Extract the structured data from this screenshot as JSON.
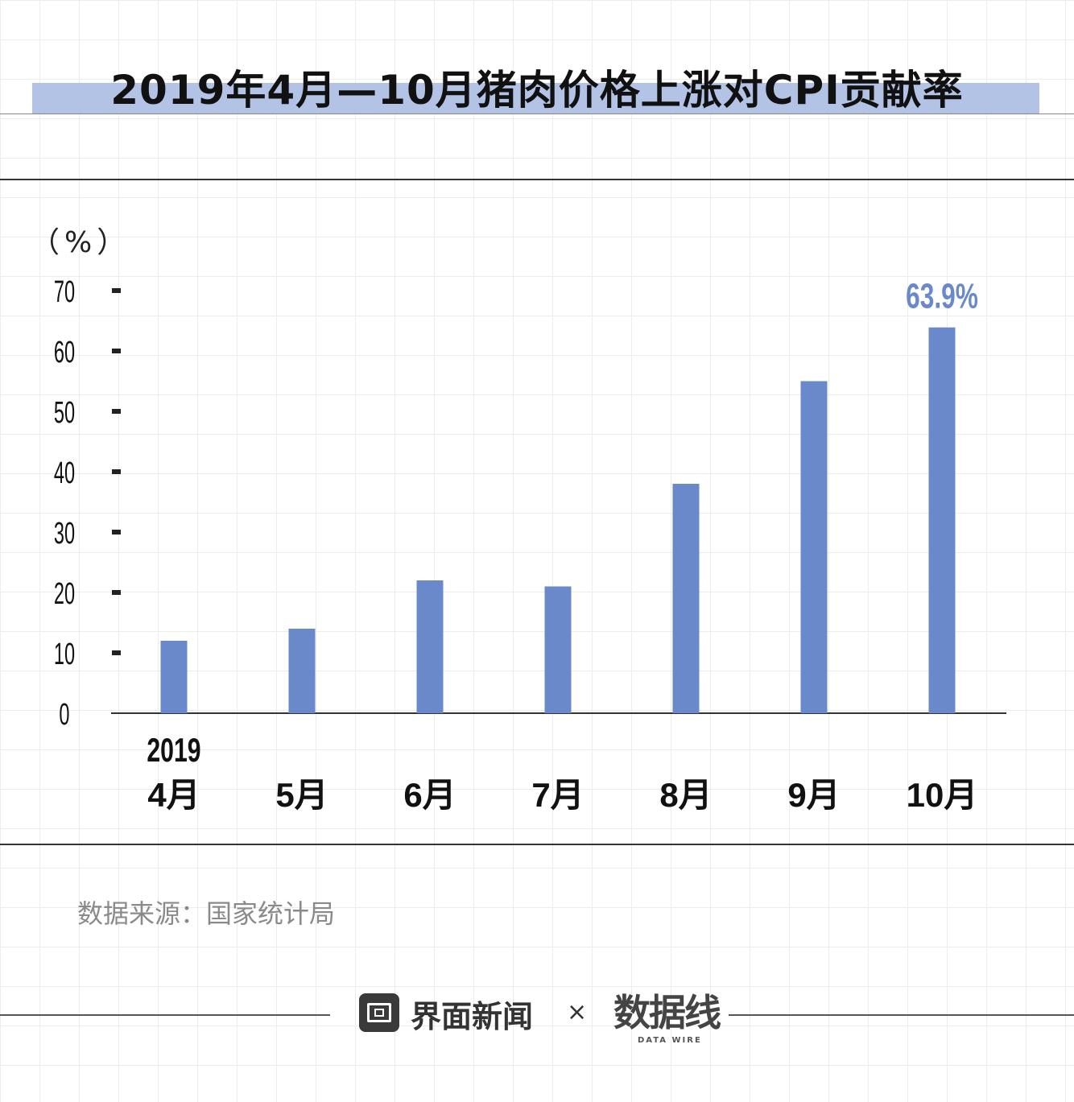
{
  "title": "2019年4月—10月猪肉价格上涨对CPI贡献率",
  "unit_label": "（%）",
  "source": "数据来源：国家统计局",
  "footer": {
    "brand_left": "界面新闻",
    "cross": "×",
    "brand_right": "数据线",
    "brand_right_sub": "DATA WIRE"
  },
  "colors": {
    "bar": "#6a89cb",
    "highlight_label": "#6a89cb",
    "title_band": "#b3c3e6"
  },
  "chart_data": {
    "type": "bar",
    "year_label": "2019",
    "categories": [
      "4月",
      "5月",
      "6月",
      "7月",
      "8月",
      "9月",
      "10月"
    ],
    "values": [
      12,
      14,
      22,
      21,
      38,
      55,
      63.9
    ],
    "data_labels": [
      "",
      "",
      "",
      "",
      "",
      "",
      "63.9%"
    ],
    "ylim": [
      0,
      70
    ],
    "yticks": [
      0,
      10,
      20,
      30,
      40,
      50,
      60,
      70
    ],
    "ylabel": "（%）",
    "grid": false
  }
}
